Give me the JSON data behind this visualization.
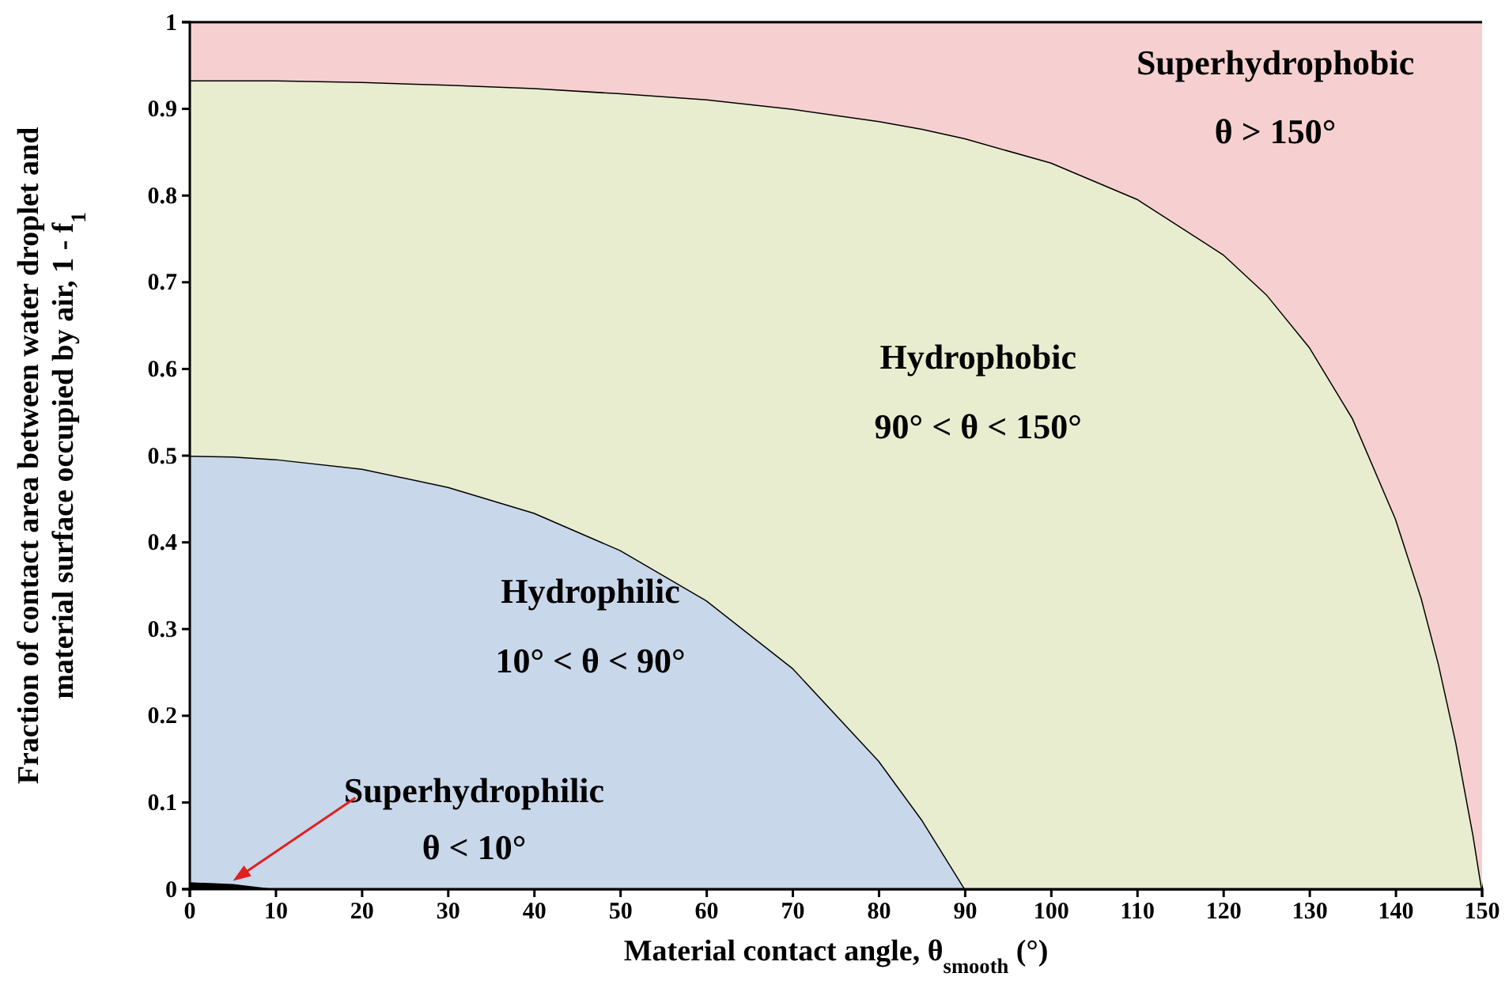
{
  "chart_data": {
    "type": "area",
    "stacked": true,
    "xlabel": "Material contact angle, θ$_{smooth}$ (°)",
    "ylabel": "Fraction of contact area between water droplet and material surface occupied by air, 1 - f$_{1}$",
    "x": [
      0,
      5,
      10,
      20,
      30,
      40,
      50,
      60,
      70,
      80,
      85,
      90,
      100,
      110,
      120,
      125,
      130,
      135,
      140,
      143,
      145,
      147,
      149,
      150
    ],
    "xlim": [
      0,
      150
    ],
    "xticks": [
      0,
      10,
      20,
      30,
      40,
      50,
      60,
      70,
      80,
      90,
      100,
      110,
      120,
      130,
      140,
      150
    ],
    "ylim": [
      0,
      1
    ],
    "yticks": [
      0,
      0.1,
      0.2,
      0.3,
      0.4,
      0.5,
      0.6,
      0.7,
      0.8,
      0.9,
      1
    ],
    "series": [
      {
        "color": "#000000",
        "values": [
          0.008,
          0.006,
          0,
          0,
          0,
          0,
          0,
          0,
          0,
          0,
          0,
          0,
          0,
          0,
          0,
          0,
          0,
          0,
          0,
          0,
          0,
          0,
          0,
          0
        ]
      },
      {
        "color": "#c9d7ea",
        "values": [
          0.492,
          0.493,
          0.496,
          0.485,
          0.464,
          0.434,
          0.391,
          0.333,
          0.255,
          0.148,
          0.08,
          0,
          0,
          0,
          0,
          0,
          0,
          0,
          0,
          0,
          0,
          0,
          0,
          0
        ]
      },
      {
        "color": "#e8edcf",
        "values": [
          0.433,
          0.434,
          0.437,
          0.446,
          0.464,
          0.49,
          0.527,
          0.578,
          0.645,
          0.738,
          0.797,
          0.866,
          0.838,
          0.796,
          0.732,
          0.686,
          0.625,
          0.543,
          0.427,
          0.335,
          0.259,
          0.169,
          0.062,
          0
        ]
      },
      {
        "color": "#f6d0d0",
        "values": [
          0.067,
          0.067,
          0.067,
          0.069,
          0.072,
          0.076,
          0.082,
          0.089,
          0.1,
          0.114,
          0.123,
          0.134,
          0.162,
          0.204,
          0.268,
          0.314,
          0.375,
          0.457,
          0.573,
          0.665,
          0.741,
          0.831,
          0.938,
          1
        ]
      }
    ],
    "annotations": [
      "Superhydrophobic",
      "θ > 150°",
      "Hydrophobic",
      "90° < θ < 150°",
      "Hydrophilic",
      "10° < θ < 90°",
      "Superhydrophilic",
      "θ < 10°"
    ]
  }
}
